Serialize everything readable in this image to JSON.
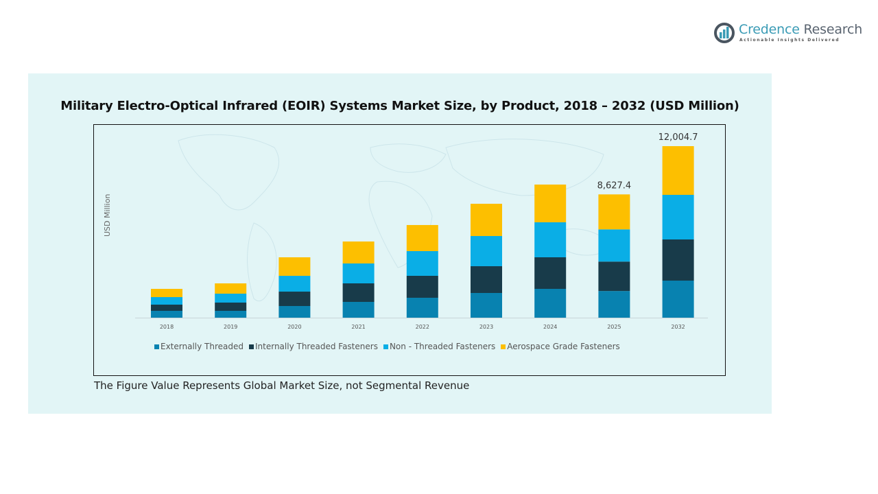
{
  "brand": {
    "name_part1": "Credence",
    "name_part2": " Research",
    "tagline": "Actionable Insights Delivered",
    "logo_icon": "bar-chart-circle-icon"
  },
  "footnote": "The Figure Value Represents Global Market Size, not Segmental Revenue",
  "colors": {
    "panel_bg": "#e2f5f6",
    "externally_threaded": "#0882b0",
    "internally_threaded": "#183b4a",
    "non_threaded": "#0aaee6",
    "aerospace_grade": "#fdbf00"
  },
  "chart_data": {
    "type": "bar",
    "stacked": true,
    "title": "Military Electro-Optical Infrared (EOIR) Systems Market Size, by Product, 2018 – 2032 (USD Million)",
    "xlabel": "",
    "ylabel": "USD Million",
    "categories": [
      "2018",
      "2019",
      "2020",
      "2021",
      "2022",
      "2023",
      "2024",
      "2025",
      "2032"
    ],
    "series": [
      {
        "name": "Externally Threaded",
        "color": "#0882b0",
        "values": [
          480,
          480,
          816,
          1104,
          1393,
          1729,
          2017,
          1865.4,
          2593.0
        ]
      },
      {
        "name": "Internally Threaded Fasteners",
        "color": "#183b4a",
        "values": [
          432,
          576,
          1008,
          1297,
          1537,
          1873,
          2209,
          2059.7,
          2881.1
        ]
      },
      {
        "name": "Non - Threaded Fasteners",
        "color": "#0aaee6",
        "values": [
          528,
          624,
          1104,
          1393,
          1729,
          2113,
          2449,
          2254.0,
          3121.2
        ]
      },
      {
        "name": "Aerospace Grade Fasteners",
        "color": "#fdbf00",
        "values": [
          576,
          720,
          1297,
          1537,
          1825,
          2257,
          2641,
          2448.3,
          3409.4
        ]
      }
    ],
    "data_labels": [
      {
        "category": "2025",
        "text": "8,627.4"
      },
      {
        "category": "2032",
        "text": "12,004.7"
      }
    ],
    "ylim": [
      0,
      12500
    ],
    "y_ticks_shown": false,
    "grid": false,
    "legend_position": "bottom"
  }
}
